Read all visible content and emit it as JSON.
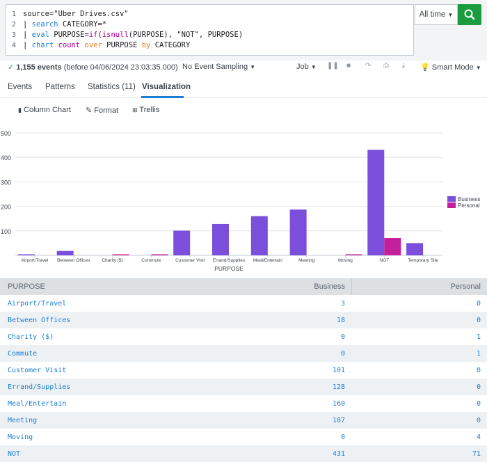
{
  "search": {
    "line_numbers": [
      "1",
      "2",
      "3",
      "4"
    ],
    "time_picker": "All time",
    "search_button": "search-icon"
  },
  "status": {
    "event_count": "1,155 events",
    "event_suffix": "(before 04/06/2024 23:03:35.000)",
    "sampling": "No Event Sampling",
    "job": "Job",
    "mode": "Smart Mode"
  },
  "tabs": {
    "events": "Events",
    "patterns": "Patterns",
    "statistics": "Statistics (11)",
    "visualization": "Visualization"
  },
  "viz_toolbar": {
    "chart_type": "Column Chart",
    "format": "Format",
    "trellis": "Trellis"
  },
  "colors": {
    "business": "#7b4fdc",
    "personal": "#c5209b",
    "accent": "#1a7fd4",
    "go": "#1a9c3e"
  },
  "chart_data": {
    "type": "bar",
    "categories": [
      "Airport/Travel",
      "Between Offices",
      "Charity ($)",
      "Commute",
      "Customer Visit",
      "Errand/Supplies",
      "Meal/Entertain",
      "Meeting",
      "Moving",
      "NOT",
      "Temporary Site"
    ],
    "series": [
      {
        "name": "Business",
        "values": [
          3,
          18,
          0,
          0,
          101,
          128,
          160,
          187,
          0,
          431,
          50
        ]
      },
      {
        "name": "Personal",
        "values": [
          0,
          0,
          1,
          1,
          0,
          0,
          0,
          0,
          4,
          71,
          0
        ]
      }
    ],
    "xlabel": "PURPOSE",
    "ylabel": "",
    "ylim": [
      0,
      500
    ],
    "yticks": [
      100,
      200,
      300,
      400,
      500
    ],
    "legend": "right",
    "grid": true
  },
  "table": {
    "headers": [
      "PURPOSE",
      "Business",
      "Personal"
    ],
    "rows": [
      [
        "Airport/Travel",
        "3",
        "0"
      ],
      [
        "Between Offices",
        "18",
        "0"
      ],
      [
        "Charity ($)",
        "0",
        "1"
      ],
      [
        "Commute",
        "0",
        "1"
      ],
      [
        "Customer Visit",
        "101",
        "0"
      ],
      [
        "Errand/Supplies",
        "128",
        "0"
      ],
      [
        "Meal/Entertain",
        "160",
        "0"
      ],
      [
        "Meeting",
        "187",
        "0"
      ],
      [
        "Moving",
        "0",
        "4"
      ],
      [
        "NOT",
        "431",
        "71"
      ]
    ]
  }
}
